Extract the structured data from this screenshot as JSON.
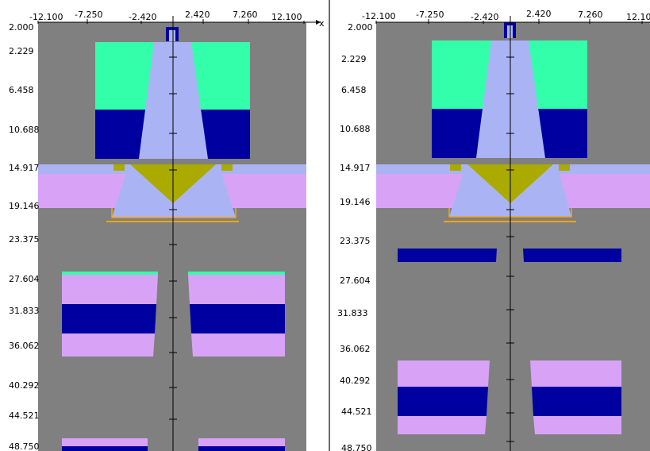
{
  "colors": {
    "background": "#808080",
    "cyan": "#33ffaa",
    "navy": "#0000a0",
    "lavender": "#aab4f5",
    "pink": "#d8a3f6",
    "olive": "#aaaa00",
    "orange": "#ffa500",
    "axis": "#000000"
  },
  "axis_x_label": "x",
  "left_panel": {
    "x_ticks": [
      "-12.100",
      "-7.250",
      "-2.420",
      "2.420",
      "7.260",
      "12.100"
    ],
    "y_ticks": [
      "2.000",
      "2.229",
      "6.458",
      "10.688",
      "14.917",
      "19.146",
      "23.375",
      "27.604",
      "31.833",
      "36.062",
      "40.292",
      "44.521",
      "48.750"
    ]
  },
  "right_panel": {
    "x_ticks": [
      "-12.100",
      "-7.250",
      "-2.420",
      "2.420",
      "7.260",
      "12.10"
    ],
    "y_ticks": [
      "2.000",
      "2.229",
      "6.458",
      "10.688",
      "14.917",
      "19.146",
      "23.375",
      "27.604",
      "31.833",
      "36.062",
      "40.292",
      "44.521",
      "48.750"
    ]
  }
}
